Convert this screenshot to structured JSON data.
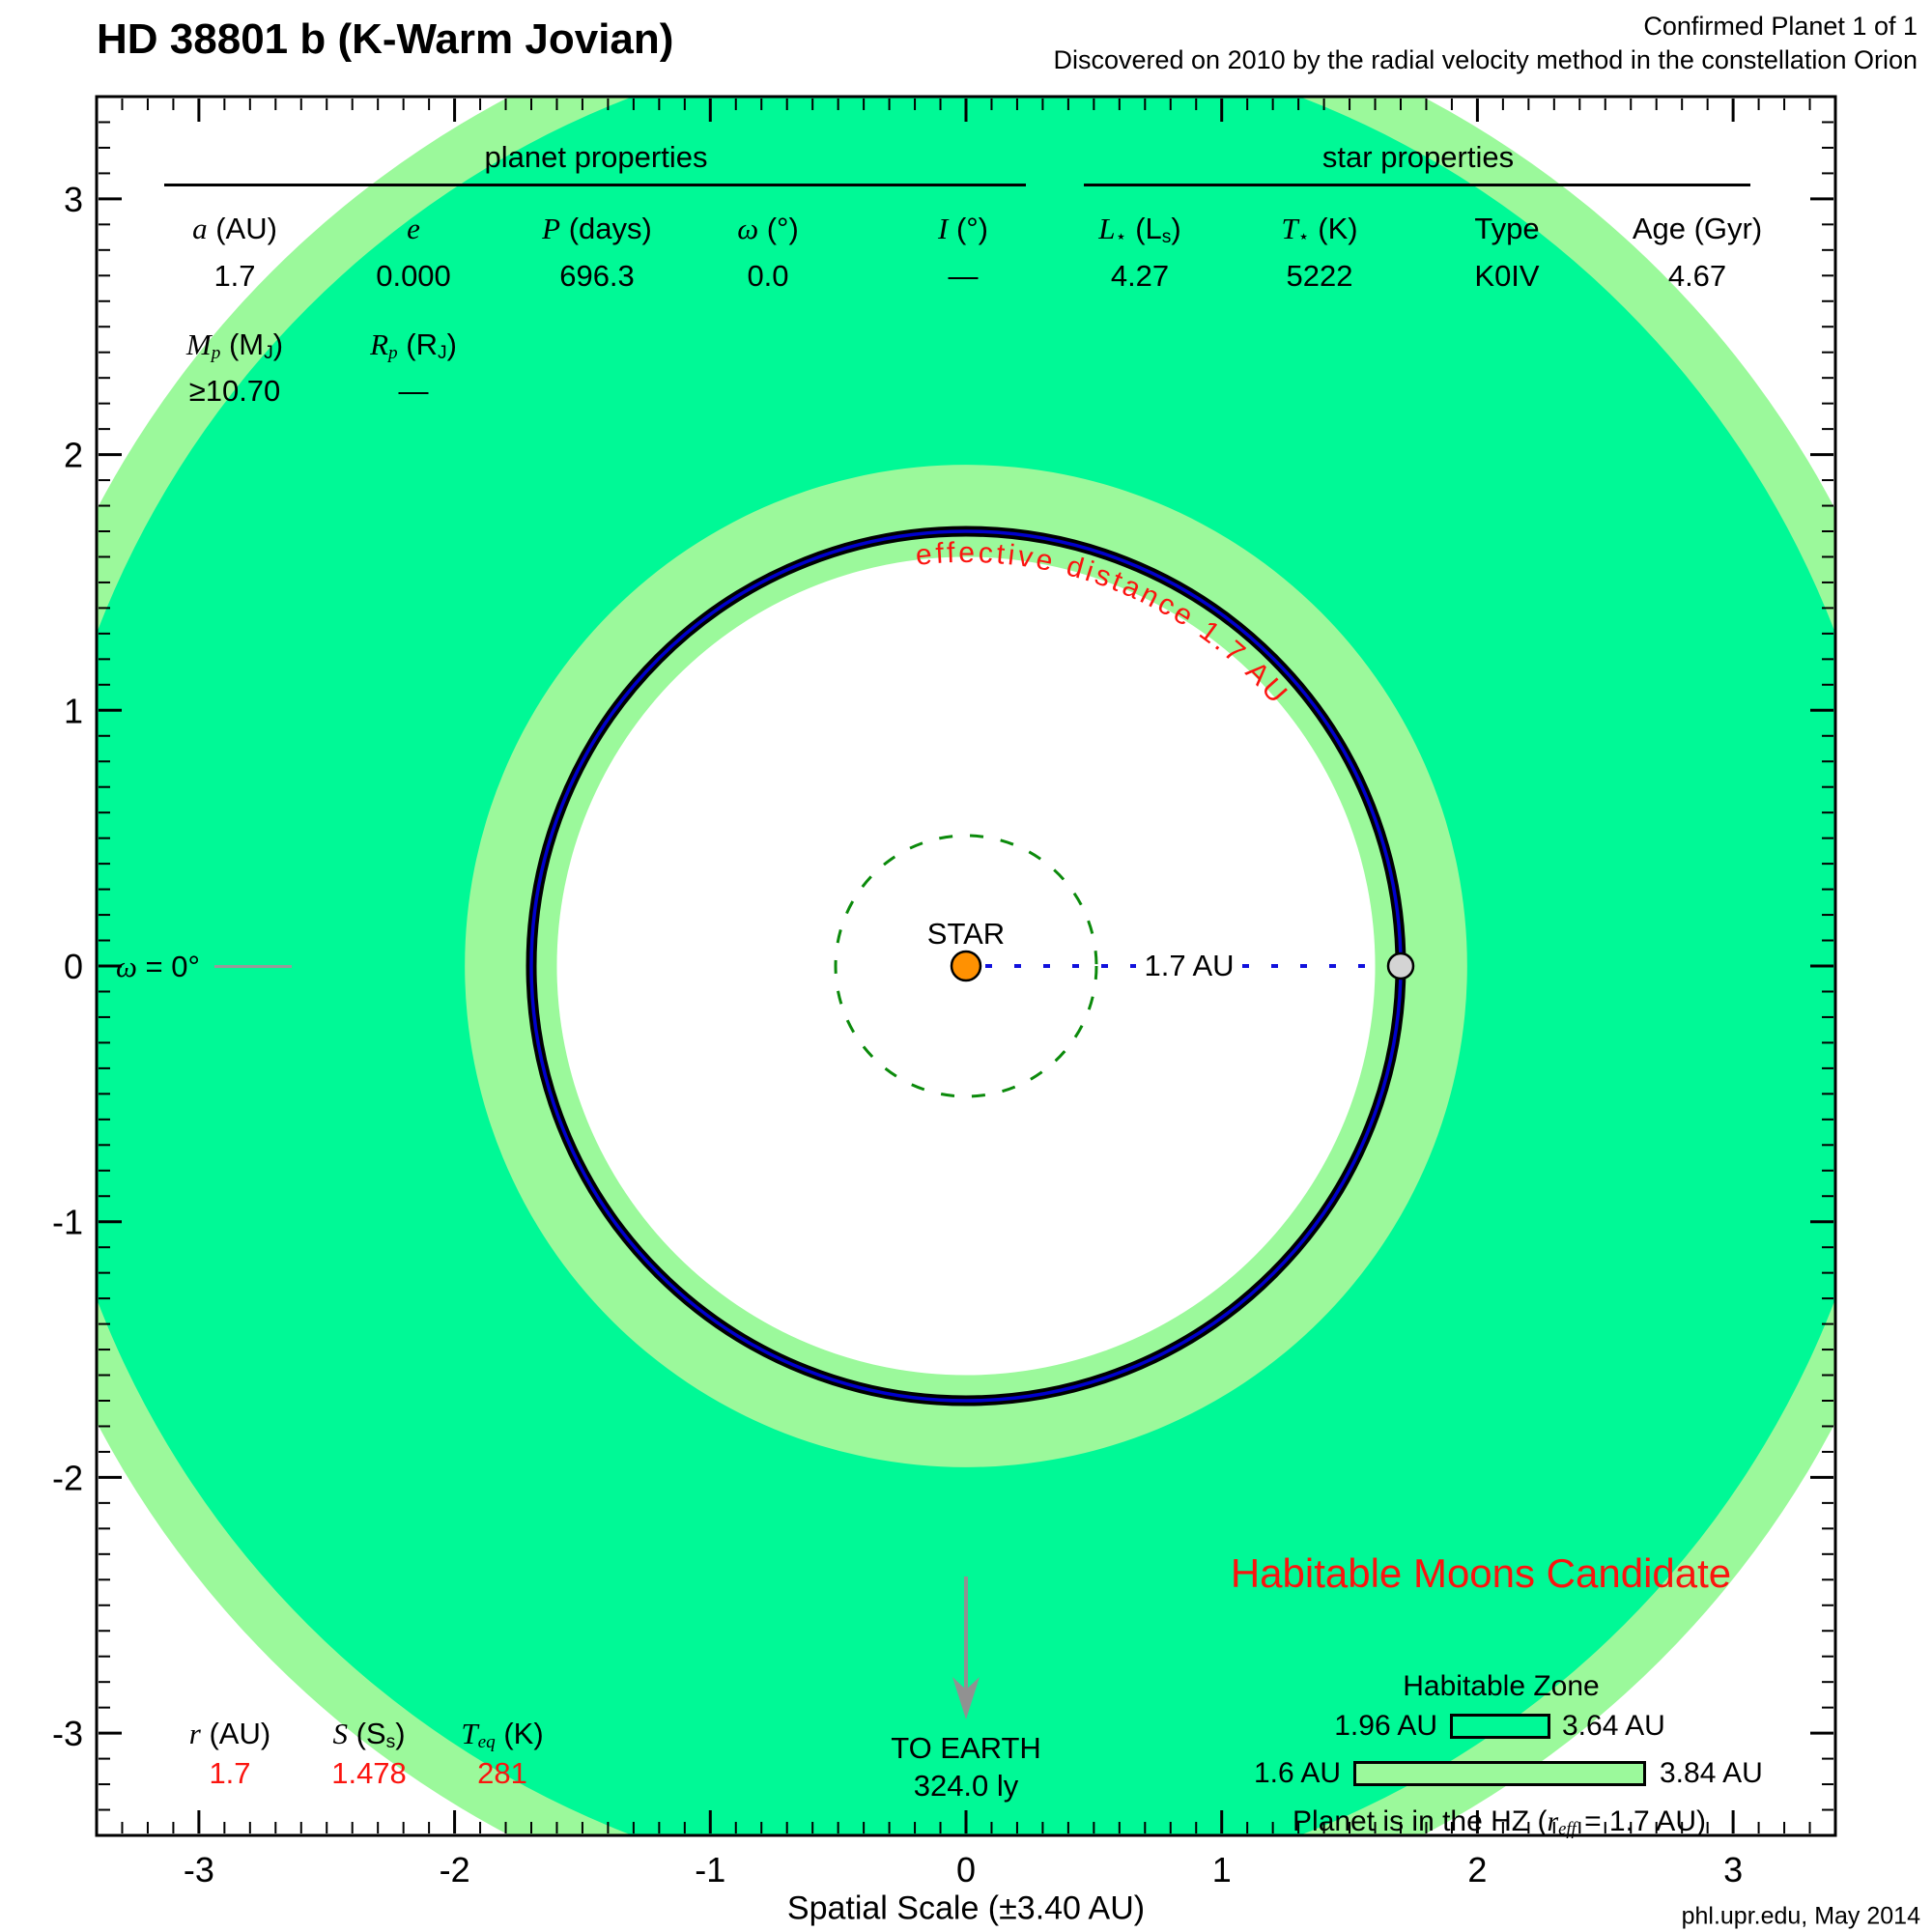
{
  "header": {
    "title": "HD 38801 b (K-Warm Jovian)",
    "status_line": "Confirmed Planet 1 of 1",
    "discovery_line": "Discovered on 2010 by the radial velocity method in the constellation Orion"
  },
  "colors": {
    "hz_conservative": "#00f996",
    "hz_optimistic": "#9bf99b",
    "orbit_blue": "#0000cc",
    "separation_line_blue": "#1111dd",
    "reference_circle_green": "#0b8a0b",
    "star_fill": "#ff9102",
    "planet_fill": "#d4d4d4",
    "highlight_red": "#fb140f",
    "earth_arrow_gray": "#919191"
  },
  "planet_table": {
    "section_title": "planet properties",
    "cols": [
      {
        "label_parts": [
          {
            "t": "a",
            "s": "i"
          },
          {
            "t": " (AU)"
          }
        ],
        "value": "1.7"
      },
      {
        "label_parts": [
          {
            "t": "e",
            "s": "i"
          }
        ],
        "value": "0.000"
      },
      {
        "label_parts": [
          {
            "t": "P",
            "s": "i"
          },
          {
            "t": " (days)"
          }
        ],
        "value": "696.3"
      },
      {
        "label_parts": [
          {
            "t": "ω",
            "s": "i"
          },
          {
            "t": " (°)"
          }
        ],
        "value": "0.0"
      },
      {
        "label_parts": [
          {
            "t": "I",
            "s": "i"
          },
          {
            "t": " (°)"
          }
        ],
        "value": "—"
      }
    ],
    "mass_cols": [
      {
        "label_parts": [
          {
            "t": "M",
            "s": "i"
          },
          {
            "t": "p",
            "s": "isub"
          },
          {
            "t": " (M"
          },
          {
            "t": "J",
            "s": "sub"
          },
          {
            "t": ")"
          }
        ],
        "value": "≥10.70"
      },
      {
        "label_parts": [
          {
            "t": "R",
            "s": "i"
          },
          {
            "t": "p",
            "s": "isub"
          },
          {
            "t": " (R"
          },
          {
            "t": "J",
            "s": "sub"
          },
          {
            "t": ")"
          }
        ],
        "value": "—"
      }
    ]
  },
  "star_table": {
    "section_title": "star properties",
    "cols": [
      {
        "label_parts": [
          {
            "t": "L",
            "s": "i"
          },
          {
            "t": "⋆",
            "s": "sub"
          },
          {
            "t": " (L"
          },
          {
            "t": "s",
            "s": "sub"
          },
          {
            "t": ")"
          }
        ],
        "value": "4.27"
      },
      {
        "label_parts": [
          {
            "t": "T",
            "s": "i"
          },
          {
            "t": "⋆",
            "s": "sub"
          },
          {
            "t": " (K)"
          }
        ],
        "value": "5222"
      },
      {
        "label_parts": [
          {
            "t": "Type"
          }
        ],
        "value": "K0IV"
      },
      {
        "label_parts": [
          {
            "t": "Age (Gyr)"
          }
        ],
        "value": "4.67"
      }
    ]
  },
  "insolation_table": {
    "cols": [
      {
        "label_parts": [
          {
            "t": "r",
            "s": "i"
          },
          {
            "t": " (AU)"
          }
        ],
        "value": "1.7"
      },
      {
        "label_parts": [
          {
            "t": "S",
            "s": "i"
          },
          {
            "t": " (S"
          },
          {
            "t": "s",
            "s": "sub"
          },
          {
            "t": ")"
          }
        ],
        "value": "1.478"
      },
      {
        "label_parts": [
          {
            "t": "T",
            "s": "i"
          },
          {
            "t": "eq",
            "s": "isub"
          },
          {
            "t": " (K)"
          }
        ],
        "value": "281"
      }
    ]
  },
  "orbit_labels": {
    "star": "STAR",
    "separation": "1.7 AU",
    "effective_distance": "effective distance 1.7 AU",
    "omega_parts": [
      {
        "t": "ω",
        "s": "i"
      },
      {
        "t": " = 0°"
      }
    ]
  },
  "earth_pointer": {
    "label": "TO EARTH",
    "distance": "324.0 ly"
  },
  "hz_legend": {
    "candidate": "Habitable Moons Candidate",
    "title": "Habitable Zone",
    "conservative": {
      "left": "1.96 AU",
      "right": "3.64 AU"
    },
    "optimistic": {
      "left": "1.6 AU",
      "right": "3.84 AU"
    },
    "note_parts": [
      {
        "t": "Planet is in the HZ ("
      },
      {
        "t": "r",
        "s": "i"
      },
      {
        "t": "eff",
        "s": "isub"
      },
      {
        "t": " = 1.7 AU)"
      }
    ]
  },
  "axis": {
    "xlabel": "Spatial Scale (±3.40 AU)"
  },
  "credit": "phl.upr.edu, May 2014",
  "chart_data": {
    "type": "scatter",
    "title": "HD 38801 b (K-Warm Jovian) orbit diagram",
    "xlabel": "Spatial Scale (±3.40 AU)",
    "xlim": [
      -3.4,
      3.4
    ],
    "ylim": [
      -3.4,
      3.4
    ],
    "x_ticks": [
      -3,
      -2,
      -1,
      0,
      1,
      2,
      3
    ],
    "y_ticks": [
      3,
      2,
      1,
      0,
      -1,
      -2,
      -3
    ],
    "minor_tick_step_au": 0.1,
    "grid": false,
    "star": {
      "x": 0,
      "y": 0,
      "label": "STAR"
    },
    "planet": {
      "x": 1.7,
      "y": 0
    },
    "orbit_radius_au": 1.7,
    "orbit_eccentricity": 0.0,
    "inner_reference_circle_au": 0.51,
    "hz_conservative_au": [
      1.96,
      3.64
    ],
    "hz_optimistic_au": [
      1.6,
      3.84
    ],
    "effective_distance_au": 1.7,
    "planet_properties": {
      "a_au": 1.7,
      "e": 0.0,
      "P_days": 696.3,
      "omega_deg": 0.0,
      "I_deg": null,
      "Mp_MJ_min": 10.7,
      "Rp_RJ": null
    },
    "star_properties": {
      "L_Ls": 4.27,
      "T_K": 5222,
      "type": "K0IV",
      "age_Gyr": 4.67
    },
    "derived": {
      "r_au": 1.7,
      "S_Ss": 1.478,
      "Teq_K": 281
    },
    "earth_distance_ly": 324.0,
    "legend_position": "bottom-right"
  }
}
